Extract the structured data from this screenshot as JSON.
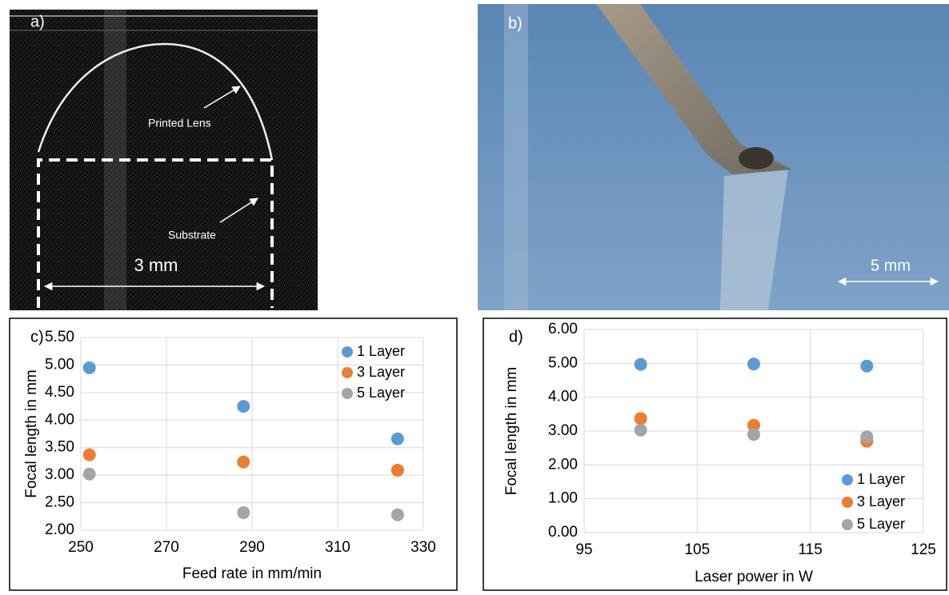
{
  "images": {
    "a": {
      "label": "a)",
      "lens_label": "Printed Lens",
      "substrate_label": "Substrate",
      "scale": "3 mm"
    },
    "b": {
      "label": "b)",
      "scale": "5 mm"
    }
  },
  "chart_data": [
    {
      "type": "scatter",
      "panel_label": "c)",
      "x_label": "Feed rate in mm/min",
      "y_label": "Focal length in mm",
      "x": [
        252,
        288,
        324
      ],
      "series": [
        {
          "name": "1 Layer",
          "color": "#5b9bd5",
          "values": [
            4.95,
            4.25,
            3.66
          ]
        },
        {
          "name": "3 Layer",
          "color": "#ed7d31",
          "values": [
            3.37,
            3.24,
            3.09
          ]
        },
        {
          "name": "5 Layer",
          "color": "#a5a5a5",
          "values": [
            3.02,
            2.32,
            2.28
          ]
        }
      ],
      "xlim": [
        250,
        330
      ],
      "xticks": [
        250,
        270,
        290,
        310,
        330
      ],
      "ylim": [
        2,
        5.5
      ],
      "yticks": [
        {
          "value": 2,
          "label": "2.00"
        },
        {
          "value": 2.5,
          "label": "2.50"
        },
        {
          "value": 3,
          "label": "3.00"
        },
        {
          "value": 3.5,
          "label": "3.50"
        },
        {
          "value": 4,
          "label": "4.00"
        },
        {
          "value": 4.5,
          "label": "4.50"
        },
        {
          "value": 5,
          "label": "5.00"
        },
        {
          "value": 5.5,
          "label": "5.50"
        }
      ],
      "grid": true,
      "legend": "top-right"
    },
    {
      "type": "scatter",
      "panel_label": "d)",
      "x_label": "Laser power in W",
      "y_label": "Focal length in mm",
      "x": [
        100,
        110,
        120
      ],
      "series": [
        {
          "name": "1 Layer",
          "color": "#5b9bd5",
          "values": [
            4.97,
            4.98,
            4.92
          ]
        },
        {
          "name": "3 Layer",
          "color": "#ed7d31",
          "values": [
            3.37,
            3.17,
            2.7
          ]
        },
        {
          "name": "5 Layer",
          "color": "#a5a5a5",
          "values": [
            3.03,
            2.9,
            2.83
          ]
        }
      ],
      "xlim": [
        95,
        125
      ],
      "xticks": [
        95,
        105,
        115,
        125
      ],
      "ylim": [
        0,
        6
      ],
      "yticks": [
        {
          "value": 0,
          "label": "0.00"
        },
        {
          "value": 1,
          "label": "1.00"
        },
        {
          "value": 2,
          "label": "2.00"
        },
        {
          "value": 3,
          "label": "3.00"
        },
        {
          "value": 4,
          "label": "4.00"
        },
        {
          "value": 5,
          "label": "5.00"
        },
        {
          "value": 6,
          "label": "6.00"
        }
      ],
      "grid": true,
      "legend": "bottom-right"
    }
  ]
}
